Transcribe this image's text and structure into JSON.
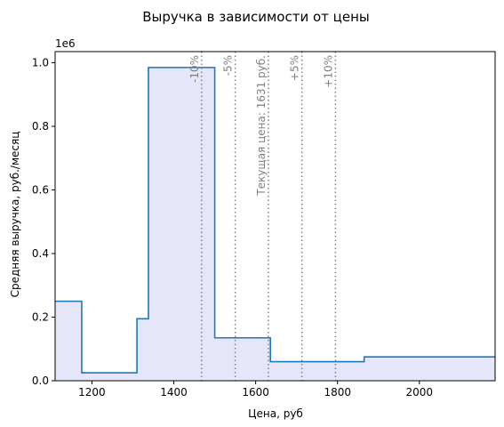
{
  "chart_data": {
    "type": "area",
    "title": "Выручка в зависимости от цены",
    "xlabel": "Цена, руб",
    "ylabel": "Средняя выручка, руб./месяц",
    "y_offset_text": "1e6",
    "xlim": [
      1110,
      2185
    ],
    "ylim": [
      0,
      1035000
    ],
    "x_ticks": [
      1200,
      1400,
      1600,
      1800,
      2000
    ],
    "y_ticks": [
      0,
      200000,
      400000,
      600000,
      800000,
      1000000
    ],
    "y_tick_labels": [
      "0.0",
      "0.2",
      "0.4",
      "0.6",
      "0.8",
      "1.0"
    ],
    "steps": [
      {
        "x0": 1110,
        "x1": 1175,
        "y": 250000
      },
      {
        "x0": 1175,
        "x1": 1310,
        "y": 25000
      },
      {
        "x0": 1310,
        "x1": 1338,
        "y": 195000
      },
      {
        "x0": 1338,
        "x1": 1500,
        "y": 985000
      },
      {
        "x0": 1500,
        "x1": 1636,
        "y": 135000
      },
      {
        "x0": 1636,
        "x1": 1865,
        "y": 60000
      },
      {
        "x0": 1865,
        "x1": 2185,
        "y": 75000
      }
    ],
    "reference_lines": [
      {
        "x": 1468,
        "label": "-10%"
      },
      {
        "x": 1550,
        "label": "-5%"
      },
      {
        "x": 1631,
        "label": "Текущая цена: 1631 руб."
      },
      {
        "x": 1713,
        "label": "+5%"
      },
      {
        "x": 1795,
        "label": "+10%"
      }
    ],
    "line_color": "#1f77b4",
    "fill_color": "#e6e6fa",
    "reference_color": "#808080",
    "grid": false,
    "legend": "none"
  }
}
